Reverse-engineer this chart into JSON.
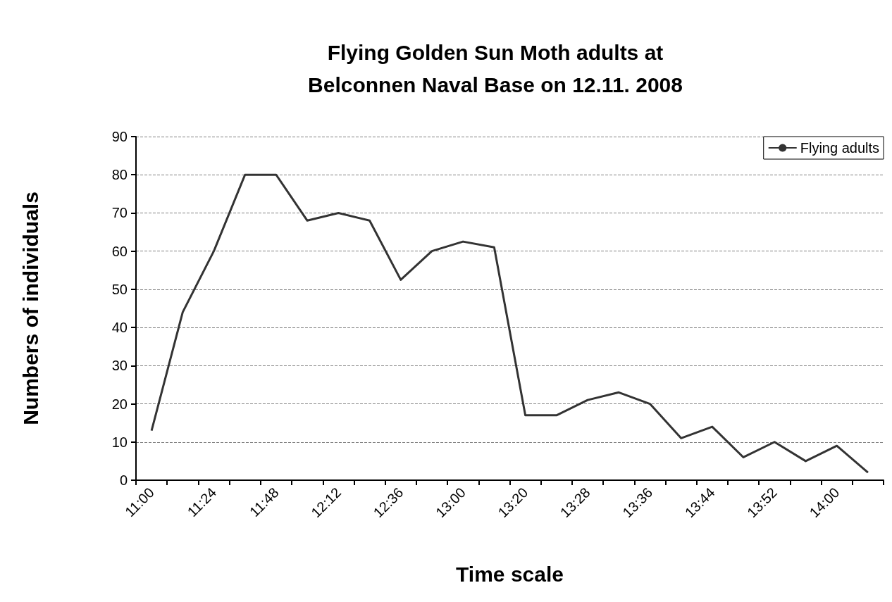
{
  "chart_data": {
    "type": "line",
    "title": "Flying Golden Sun Moth adults at\nBelconnen Naval Base on 12.11. 2008",
    "xlabel": "Time scale",
    "ylabel": "Numbers of individuals",
    "categories": [
      "11:00",
      null,
      "11:24",
      null,
      "11:48",
      null,
      "12:12",
      null,
      "12:36",
      null,
      "13:00",
      null,
      "13:20",
      null,
      "13:28",
      null,
      "13:36",
      null,
      "13:44",
      null,
      "13:52",
      null,
      "14:00",
      null
    ],
    "series": [
      {
        "name": "Flying adults",
        "color": "#333333",
        "values": [
          13,
          44,
          60,
          80,
          80,
          68,
          70,
          68,
          52.5,
          60,
          62.5,
          61,
          17,
          17,
          21,
          23,
          20,
          11,
          14,
          6,
          10,
          5,
          9,
          2
        ]
      }
    ],
    "ylim": [
      0,
      90
    ],
    "yticks": [
      0,
      10,
      20,
      30,
      40,
      50,
      60,
      70,
      80,
      90
    ],
    "grid": "y",
    "legend": "top right",
    "marker": "none",
    "line_style": "solid"
  }
}
